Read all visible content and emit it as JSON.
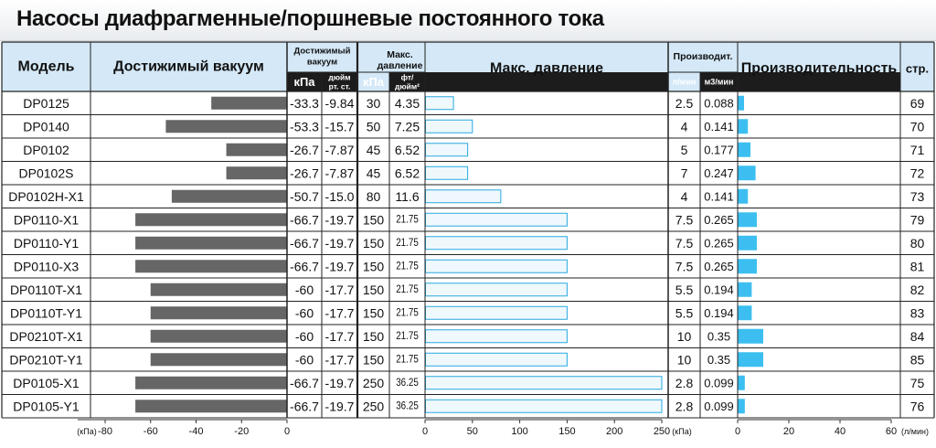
{
  "title": "Насосы диафрагменные/поршневые постоянного тока",
  "headers": {
    "model": "Модель",
    "vacuum_bar": "Достижимый вакуум",
    "vacuum_group": [
      "Достижимый",
      "вакуум"
    ],
    "vacuum_kpa": "кПа",
    "vacuum_inhg": [
      "дюйм",
      "рт. ст."
    ],
    "pressure_group": [
      "Макс.",
      "давление"
    ],
    "pressure_kpa": "кПа",
    "pressure_psi": [
      "фт/",
      "дюйм²"
    ],
    "pressure_bar": "Макс. давление",
    "flow_group": "Производит.",
    "flow_lmin": "л/мин",
    "flow_m3": "м3/мин",
    "flow_bar": "Производительность",
    "page": "стр."
  },
  "axes": {
    "vacuum": {
      "unit": "(кПа)",
      "ticks": [
        "-80",
        "-60",
        "-40",
        "-20",
        "0"
      ],
      "range": [
        -80,
        0
      ]
    },
    "pressure": {
      "unit": "(кПа)",
      "ticks": [
        "0",
        "50",
        "100",
        "150",
        "200",
        "250"
      ],
      "range": [
        0,
        250
      ]
    },
    "flow": {
      "unit": "(л/мин)",
      "ticks": [
        "0",
        "20",
        "40",
        "60"
      ],
      "range": [
        0,
        60
      ]
    }
  },
  "colors": {
    "header_bg": "#d4e8f7",
    "subheader_bg": "#1c1c1c",
    "vacuum_bar": "#666666",
    "pressure_bar": "#eef8fd",
    "pressure_bar_border": "#29a9e0",
    "flow_bar": "#3cbff0"
  },
  "chart_data": {
    "type": "table",
    "columns": [
      "Модель",
      "кПа",
      "дюйм рт. ст.",
      "кПа",
      "фт/дюйм²",
      "л/мин",
      "м3/мин",
      "стр."
    ],
    "rows": [
      {
        "model": "DP0125",
        "vac_kpa": "-33.3",
        "vac_inhg": "-9.84",
        "pres_kpa": "30",
        "pres_psi": "4.35",
        "flow_l": "2.5",
        "flow_m3": "0.088",
        "page": "69"
      },
      {
        "model": "DP0140",
        "vac_kpa": "-53.3",
        "vac_inhg": "-15.7",
        "pres_kpa": "50",
        "pres_psi": "7.25",
        "flow_l": "4",
        "flow_m3": "0.141",
        "page": "70"
      },
      {
        "model": "DP0102",
        "vac_kpa": "-26.7",
        "vac_inhg": "-7.87",
        "pres_kpa": "45",
        "pres_psi": "6.52",
        "flow_l": "5",
        "flow_m3": "0.177",
        "page": "71"
      },
      {
        "model": "DP0102S",
        "vac_kpa": "-26.7",
        "vac_inhg": "-7.87",
        "pres_kpa": "45",
        "pres_psi": "6.52",
        "flow_l": "7",
        "flow_m3": "0.247",
        "page": "72"
      },
      {
        "model": "DP0102H-X1",
        "vac_kpa": "-50.7",
        "vac_inhg": "-15.0",
        "pres_kpa": "80",
        "pres_psi": "11.6",
        "flow_l": "4",
        "flow_m3": "0.141",
        "page": "73"
      },
      {
        "model": "DP0110-X1",
        "vac_kpa": "-66.7",
        "vac_inhg": "-19.7",
        "pres_kpa": "150",
        "pres_psi": "21.75",
        "flow_l": "7.5",
        "flow_m3": "0.265",
        "page": "79"
      },
      {
        "model": "DP0110-Y1",
        "vac_kpa": "-66.7",
        "vac_inhg": "-19.7",
        "pres_kpa": "150",
        "pres_psi": "21.75",
        "flow_l": "7.5",
        "flow_m3": "0.265",
        "page": "80"
      },
      {
        "model": "DP0110-X3",
        "vac_kpa": "-66.7",
        "vac_inhg": "-19.7",
        "pres_kpa": "150",
        "pres_psi": "21.75",
        "flow_l": "7.5",
        "flow_m3": "0.265",
        "page": "81"
      },
      {
        "model": "DP0110T-X1",
        "vac_kpa": "-60",
        "vac_inhg": "-17.7",
        "pres_kpa": "150",
        "pres_psi": "21.75",
        "flow_l": "5.5",
        "flow_m3": "0.194",
        "page": "82"
      },
      {
        "model": "DP0110T-Y1",
        "vac_kpa": "-60",
        "vac_inhg": "-17.7",
        "pres_kpa": "150",
        "pres_psi": "21.75",
        "flow_l": "5.5",
        "flow_m3": "0.194",
        "page": "83"
      },
      {
        "model": "DP0210T-X1",
        "vac_kpa": "-60",
        "vac_inhg": "-17.7",
        "pres_kpa": "150",
        "pres_psi": "21.75",
        "flow_l": "10",
        "flow_m3": "0.35",
        "page": "84"
      },
      {
        "model": "DP0210T-Y1",
        "vac_kpa": "-60",
        "vac_inhg": "-17.7",
        "pres_kpa": "150",
        "pres_psi": "21.75",
        "flow_l": "10",
        "flow_m3": "0.35",
        "page": "85"
      },
      {
        "model": "DP0105-X1",
        "vac_kpa": "-66.7",
        "vac_inhg": "-19.7",
        "pres_kpa": "250",
        "pres_psi": "36.25",
        "flow_l": "2.8",
        "flow_m3": "0.099",
        "page": "75"
      },
      {
        "model": "DP0105-Y1",
        "vac_kpa": "-66.7",
        "vac_inhg": "-19.7",
        "pres_kpa": "250",
        "pres_psi": "36.25",
        "flow_l": "2.8",
        "flow_m3": "0.099",
        "page": "76"
      }
    ]
  }
}
